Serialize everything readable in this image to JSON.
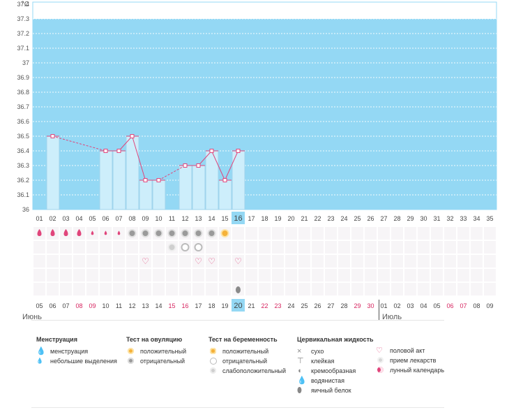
{
  "chart_data": {
    "type": "line",
    "unit": "°C",
    "y_ticks": [
      "37.4",
      "37.3",
      "37.2",
      "37.1",
      "37",
      "36.9",
      "36.8",
      "36.7",
      "36.6",
      "36.5",
      "36.4",
      "36.3",
      "36.2",
      "36.1",
      "36"
    ],
    "ylim": [
      36,
      37.4
    ],
    "cycle_days": [
      "01",
      "02",
      "03",
      "04",
      "05",
      "06",
      "07",
      "08",
      "09",
      "10",
      "11",
      "12",
      "13",
      "14",
      "15",
      "16",
      "17",
      "18",
      "19",
      "20",
      "21",
      "22",
      "23",
      "24",
      "25",
      "26",
      "27",
      "28",
      "29",
      "30",
      "31",
      "32",
      "33",
      "34",
      "35"
    ],
    "today_index": 15,
    "temperature_points": [
      {
        "day": "02",
        "value": 36.5
      },
      {
        "day": "06",
        "value": 36.4
      },
      {
        "day": "07",
        "value": 36.4
      },
      {
        "day": "08",
        "value": 36.5
      },
      {
        "day": "09",
        "value": 36.2
      },
      {
        "day": "10",
        "value": 36.2
      },
      {
        "day": "12",
        "value": 36.3
      },
      {
        "day": "13",
        "value": 36.3
      },
      {
        "day": "14",
        "value": 36.4
      },
      {
        "day": "15",
        "value": 36.2
      },
      {
        "day": "16",
        "value": 36.4
      }
    ],
    "dashed_segments": [
      [
        "02",
        "06"
      ],
      [
        "10",
        "12"
      ]
    ],
    "calendar_dates": [
      "05",
      "06",
      "07",
      "08",
      "09",
      "10",
      "11",
      "12",
      "13",
      "14",
      "15",
      "16",
      "17",
      "18",
      "19",
      "20",
      "21",
      "22",
      "23",
      "24",
      "25",
      "26",
      "27",
      "28",
      "29",
      "30",
      "01",
      "02",
      "03",
      "04",
      "05",
      "06",
      "07",
      "08",
      "09"
    ],
    "weekend_indices": [
      3,
      4,
      10,
      11,
      17,
      18,
      24,
      25,
      31,
      32
    ],
    "month_labels": [
      "Июнь",
      "Июль"
    ],
    "month_start_index": 26,
    "marker_rows": {
      "menstruation": {
        "heavy": [
          "01",
          "02",
          "03",
          "04"
        ],
        "light": [
          "05",
          "06",
          "07"
        ]
      },
      "ovulation_test": {
        "negative": [
          "08",
          "09",
          "10",
          "11",
          "12",
          "13",
          "14"
        ],
        "positive": [
          "15"
        ]
      },
      "pregnancy_test": {
        "weak_positive": [
          "11"
        ],
        "negative": [
          "12",
          "13"
        ]
      },
      "intercourse": [
        "09",
        "13",
        "14",
        "16"
      ],
      "cervical_fluid": {
        "egg_white": [
          "16"
        ]
      }
    },
    "colors": {
      "plot_background": "#94d8f4",
      "bar_fill": "#cdeefb",
      "bar_stroke": "#9fd4ec",
      "line": "#e0457b",
      "today_highlight": "#94d8f4",
      "weekend_text": "#d6245f"
    }
  },
  "legend": {
    "menstruation": {
      "title": "Менструация",
      "items": [
        "менструация",
        "небольшие выделения"
      ]
    },
    "ovulation_test": {
      "title": "Тест на овуляцию",
      "items": [
        "положительный",
        "отрицательный"
      ]
    },
    "pregnancy_test": {
      "title": "Тест на беременность",
      "items": [
        "положительный",
        "отрицательный",
        "слабоположительный"
      ]
    },
    "cervical_fluid": {
      "title": "Цервикальная жидкость",
      "items": [
        "сухо",
        "клейкая",
        "кремообразная",
        "водянистая",
        "яичный белок"
      ]
    },
    "other": {
      "items": [
        "половой акт",
        "прием лекарств",
        "лунный календарь"
      ]
    }
  }
}
